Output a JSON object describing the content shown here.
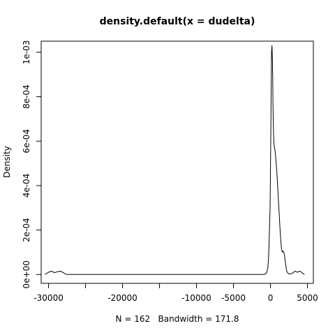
{
  "chart_data": {
    "type": "line",
    "title": "density.default(x = dudelta)",
    "xlabel": "N = 162   Bandwidth = 171.8",
    "ylabel": "Density",
    "xlim": [
      -31000,
      5800
    ],
    "ylim": [
      -4e-05,
      0.00105
    ],
    "x_ticks": [
      -30000,
      -25000,
      -20000,
      -15000,
      -10000,
      -5000,
      0,
      5000
    ],
    "x_tick_labels": [
      "-30000",
      "",
      "-20000",
      "",
      "-10000",
      "-5000",
      "0",
      "5000"
    ],
    "y_ticks": [
      0,
      0.0002,
      0.0004,
      0.0006,
      0.0008,
      0.001
    ],
    "y_tick_labels": [
      "0e+00",
      "2e-04",
      "4e-04",
      "6e-04",
      "8e-04",
      "1e-03"
    ],
    "grid": false,
    "series": [
      {
        "x": [
          -30500,
          -30000,
          -29600,
          -29200,
          -28800,
          -28400,
          -28000,
          -27700,
          -27300,
          -20000,
          -10000,
          -5000,
          -1000,
          -700,
          -500,
          -350,
          -250,
          -150,
          -50,
          0,
          50,
          100,
          150,
          200,
          250,
          300,
          350,
          400,
          450,
          500,
          550,
          600,
          700,
          800,
          900,
          1000,
          1100,
          1200,
          1300,
          1400,
          1500,
          1600,
          1700,
          1800,
          1900,
          2000,
          2100,
          2200,
          2400,
          2600,
          2800,
          3000,
          3200,
          3400,
          3600,
          3800,
          4000,
          4200,
          4400,
          4600
        ],
        "y": [
          0,
          1e-05,
          1.5e-05,
          8e-06,
          1.2e-05,
          1.5e-05,
          8e-06,
          1e-06,
          0,
          0,
          0,
          0,
          0,
          1e-06,
          1e-05,
          3e-05,
          8e-05,
          0.00018,
          0.0003,
          0.00045,
          0.00065,
          0.00085,
          0.001,
          0.00103,
          0.00098,
          0.0009,
          0.00075,
          0.00065,
          0.0006,
          0.00058,
          0.00057,
          0.00056,
          0.00053,
          0.00049,
          0.00044,
          0.00038,
          0.00032,
          0.00026,
          0.0002,
          0.00015,
          0.000115,
          0.0001,
          0.000105,
          0.0001,
          8.5e-05,
          6e-05,
          3.5e-05,
          1.5e-05,
          4e-06,
          2e-06,
          3e-06,
          6e-06,
          1.2e-05,
          1.5e-05,
          1e-05,
          1.2e-05,
          1.5e-05,
          1e-05,
          4e-06,
          0
        ]
      }
    ]
  }
}
